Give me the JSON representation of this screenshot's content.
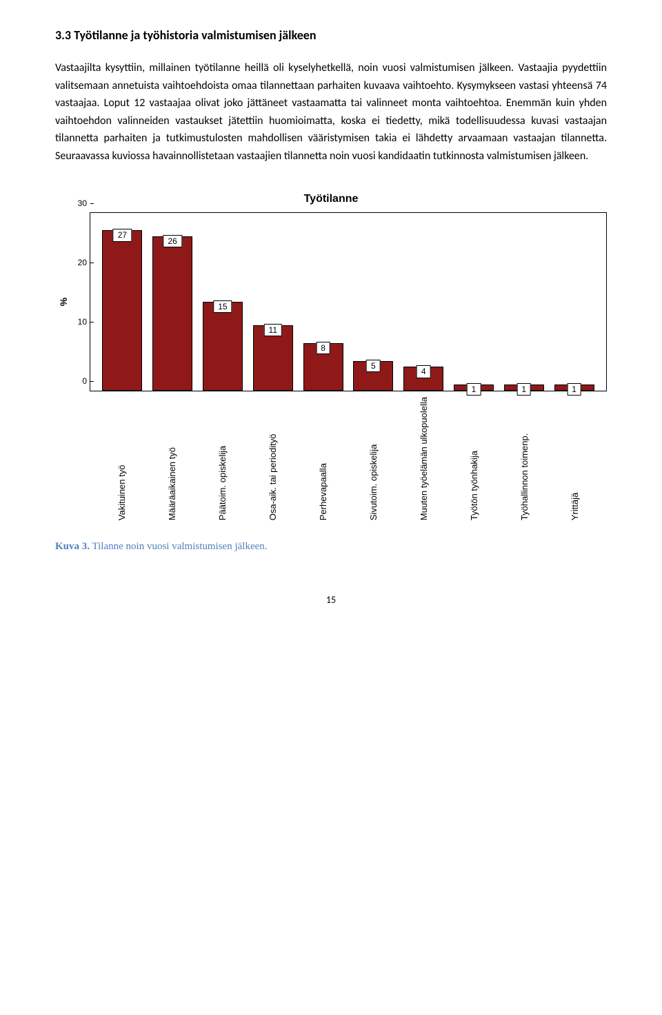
{
  "heading": "3.3 Työtilanne ja työhistoria valmistumisen jälkeen",
  "paragraph": "Vastaajilta kysyttiin, millainen työtilanne heillä oli kyselyhetkellä, noin vuosi valmistumisen jälkeen. Vastaajia pyydettiin valitsemaan annetuista vaihtoehdoista omaa tilannettaan parhaiten kuvaava vaihtoehto. Kysymykseen vastasi yhteensä 74 vastaajaa. Loput 12 vastaajaa olivat joko jättäneet vastaamatta tai valinneet monta vaihtoehtoa. Enemmän kuin yhden vaihtoehdon valinneiden vastaukset jätettiin huomioimatta, koska ei tiedetty, mikä todellisuudessa kuvasi vastaajan tilannetta parhaiten ja tutkimustulosten mahdollisen vääristymisen takia ei lähdetty arvaamaan vastaajan tilannetta. Seuraavassa kuviossa havainnollistetaan vastaajien tilannetta noin vuosi kandidaatin tutkinnosta valmistumisen jälkeen.",
  "chart": {
    "title": "Työtilanne",
    "y_label": "%",
    "y_max": 30,
    "y_ticks": [
      0,
      10,
      20,
      30
    ],
    "bar_color": "#8f1919",
    "bar_border": "#000000",
    "background": "#ffffff",
    "categories": [
      {
        "label": "Vakituinen työ",
        "value": 27
      },
      {
        "label": "Määräaikainen työ",
        "value": 26
      },
      {
        "label": "Päätoim. opiskelija",
        "value": 15
      },
      {
        "label": "Osa-aik. tai periodityö",
        "value": 11
      },
      {
        "label": "Perhevapaalla",
        "value": 8
      },
      {
        "label": "Sivutoim. opiskelija",
        "value": 5
      },
      {
        "label": "Muuten työelämän ulkopuolella",
        "value": 4
      },
      {
        "label": "Työtön työnhakija",
        "value": 1
      },
      {
        "label": "Työhallinnon toimenp.",
        "value": 1
      },
      {
        "label": "Yrittäjä",
        "value": 1
      }
    ]
  },
  "caption_prefix": "Kuva 3.",
  "caption_text": " Tilanne noin vuosi valmistumisen jälkeen.",
  "page_number": "15"
}
